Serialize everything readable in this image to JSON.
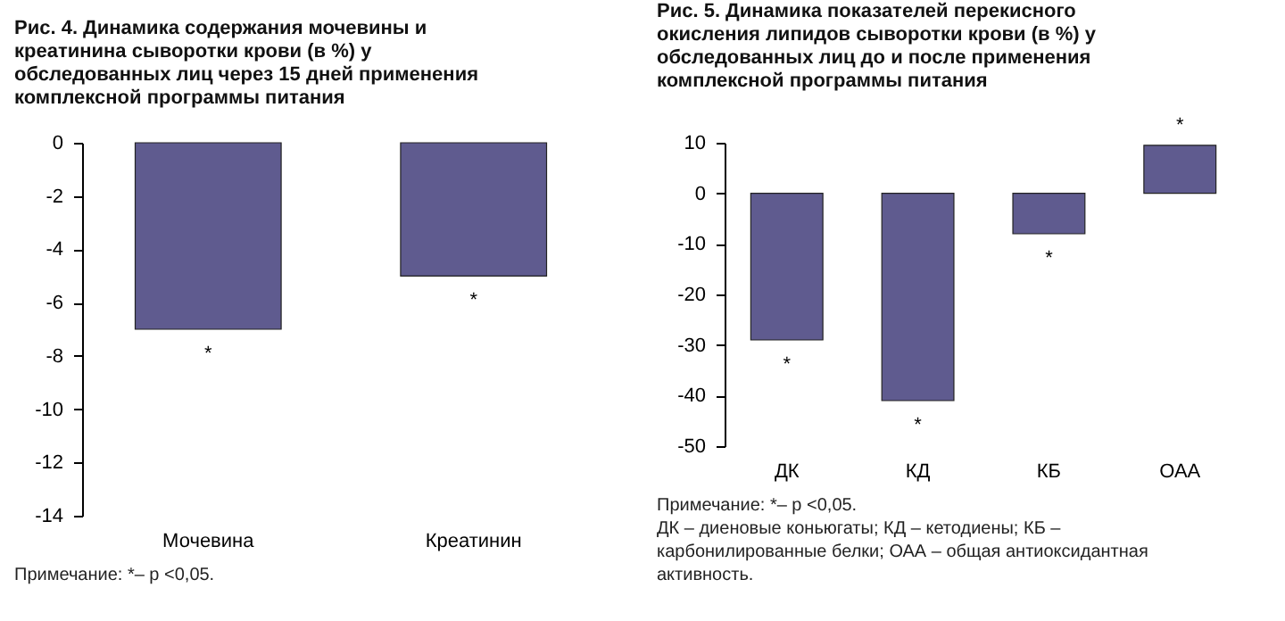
{
  "chart_data": [
    {
      "type": "bar",
      "title": "Рис. 4. Динамика содержания мочевины и креатинина сыворотки крови (в %) у обследованных лиц через 15 дней применения комплексной программы питания",
      "categories": [
        "Мочевина",
        "Креатинин"
      ],
      "values": [
        -7,
        -5
      ],
      "color": "#5f5b8f",
      "ylim": [
        -14,
        0
      ],
      "yticks": [
        -14,
        -12,
        -10,
        -8,
        -6,
        -4,
        -2,
        0
      ],
      "grid": false,
      "annotations": [
        {
          "text": "*",
          "x": "Мочевина",
          "y": -7
        },
        {
          "text": "*",
          "x": "Креатинин",
          "y": -5
        },
        "Примечание: *– p <0,05."
      ]
    },
    {
      "type": "bar",
      "title": "Рис. 5. Динамика показателей перекисного окисления липидов сыворотки крови (в %) у обследованных лиц до и после применения комплексной программы питания",
      "categories": [
        "ДК",
        "КД",
        "КБ",
        "ОАА"
      ],
      "values": [
        -29,
        -41,
        -8,
        9.5
      ],
      "color": "#5f5b8f",
      "ylim": [
        -50,
        10
      ],
      "yticks": [
        -50,
        -40,
        -30,
        -20,
        -10,
        0,
        10
      ],
      "grid": false,
      "annotations": [
        {
          "text": "*",
          "x": "ДК",
          "y": -29
        },
        {
          "text": "*",
          "x": "КД",
          "y": -41
        },
        {
          "text": "*",
          "x": "КБ",
          "y": -8
        },
        {
          "text": "*",
          "x": "ОАА",
          "y": 9.5
        },
        "Примечание: *– p <0,05.",
        "ДК – диеновые коньюгаты; КД – кетодиены; КБ – карбонилированные белки; ОАА – общая антиоксидантная активность."
      ]
    }
  ]
}
